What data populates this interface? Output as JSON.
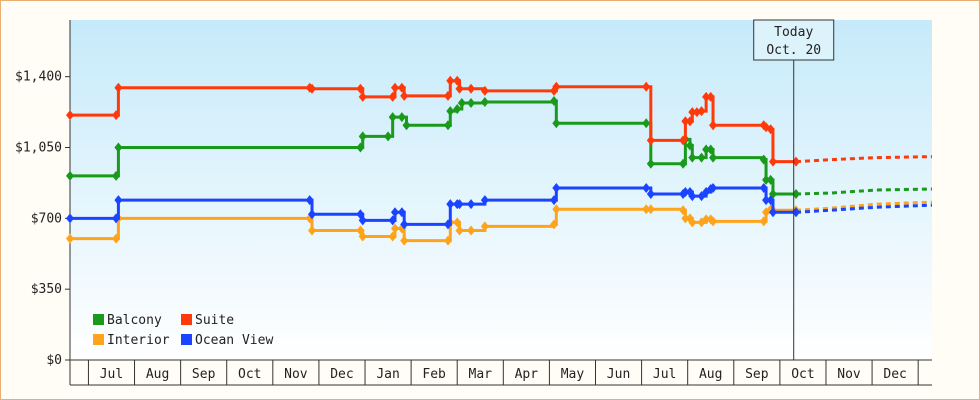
{
  "chart_data": {
    "type": "line",
    "step": true,
    "y_tick_labels": [
      "$0",
      "$350",
      "$700",
      "$1,050",
      "$1,400"
    ],
    "ylim": [
      0,
      1680
    ],
    "x_tick_labels": [
      "Jul",
      "Aug",
      "Sep",
      "Oct",
      "Nov",
      "Dec",
      "Jan",
      "Feb",
      "Mar",
      "Apr",
      "May",
      "Jun",
      "Jul",
      "Aug",
      "Sep",
      "Oct",
      "Nov",
      "Dec"
    ],
    "xlim": [
      0,
      18.7
    ],
    "today": {
      "line1": "Today",
      "line2": "Oct. 20",
      "x": 15.7
    },
    "legend_placement": "bottom-left",
    "series": [
      {
        "name": "Balcony",
        "color": "#1a9a1a",
        "points": [
          [
            0,
            910
          ],
          [
            1,
            910
          ],
          [
            1.05,
            1050
          ],
          [
            6.3,
            1050
          ],
          [
            6.35,
            1105
          ],
          [
            6.9,
            1105
          ],
          [
            7,
            1200
          ],
          [
            7.2,
            1200
          ],
          [
            7.3,
            1160
          ],
          [
            8.2,
            1160
          ],
          [
            8.25,
            1230
          ],
          [
            8.4,
            1240
          ],
          [
            8.5,
            1270
          ],
          [
            8.7,
            1270
          ],
          [
            9,
            1275
          ],
          [
            10.5,
            1280
          ],
          [
            10.55,
            1170
          ],
          [
            12.5,
            1170
          ],
          [
            12.6,
            970
          ],
          [
            13.3,
            970
          ],
          [
            13.35,
            1090
          ],
          [
            13.45,
            1060
          ],
          [
            13.5,
            1000
          ],
          [
            13.7,
            1000
          ],
          [
            13.8,
            1040
          ],
          [
            13.9,
            1040
          ],
          [
            13.95,
            1000
          ],
          [
            15.05,
            990
          ],
          [
            15.1,
            890
          ],
          [
            15.2,
            890
          ],
          [
            15.25,
            820
          ],
          [
            15.75,
            820
          ]
        ],
        "dashed": [
          [
            15.75,
            820
          ],
          [
            16.5,
            825
          ],
          [
            17.5,
            840
          ],
          [
            18.7,
            845
          ]
        ]
      },
      {
        "name": "Suite",
        "color": "#ff3a0a",
        "points": [
          [
            0,
            1210
          ],
          [
            1,
            1210
          ],
          [
            1.05,
            1345
          ],
          [
            5.2,
            1345
          ],
          [
            5.25,
            1340
          ],
          [
            6.3,
            1340
          ],
          [
            6.35,
            1300
          ],
          [
            7,
            1300
          ],
          [
            7.05,
            1345
          ],
          [
            7.2,
            1345
          ],
          [
            7.25,
            1305
          ],
          [
            8.2,
            1305
          ],
          [
            8.25,
            1380
          ],
          [
            8.4,
            1380
          ],
          [
            8.45,
            1340
          ],
          [
            8.7,
            1340
          ],
          [
            9,
            1330
          ],
          [
            10.5,
            1330
          ],
          [
            10.55,
            1350
          ],
          [
            12.5,
            1350
          ],
          [
            12.6,
            1085
          ],
          [
            13.3,
            1085
          ],
          [
            13.35,
            1180
          ],
          [
            13.45,
            1180
          ],
          [
            13.5,
            1225
          ],
          [
            13.6,
            1225
          ],
          [
            13.7,
            1230
          ],
          [
            13.8,
            1300
          ],
          [
            13.9,
            1300
          ],
          [
            13.95,
            1160
          ],
          [
            15.05,
            1160
          ],
          [
            15.1,
            1150
          ],
          [
            15.2,
            1140
          ],
          [
            15.25,
            980
          ],
          [
            15.75,
            980
          ]
        ],
        "dashed": [
          [
            15.75,
            980
          ],
          [
            16.5,
            990
          ],
          [
            17.5,
            1000
          ],
          [
            18.7,
            1005
          ]
        ]
      },
      {
        "name": "Interior",
        "color": "#ffa41a",
        "points": [
          [
            0,
            600
          ],
          [
            1,
            600
          ],
          [
            1.05,
            700
          ],
          [
            5.2,
            700
          ],
          [
            5.25,
            640
          ],
          [
            6.3,
            640
          ],
          [
            6.35,
            610
          ],
          [
            7,
            610
          ],
          [
            7.05,
            650
          ],
          [
            7.2,
            650
          ],
          [
            7.25,
            590
          ],
          [
            8.2,
            590
          ],
          [
            8.25,
            680
          ],
          [
            8.4,
            680
          ],
          [
            8.45,
            640
          ],
          [
            8.7,
            640
          ],
          [
            9,
            660
          ],
          [
            10.5,
            670
          ],
          [
            10.55,
            745
          ],
          [
            12.5,
            745
          ],
          [
            12.6,
            745
          ],
          [
            13.3,
            740
          ],
          [
            13.35,
            700
          ],
          [
            13.45,
            700
          ],
          [
            13.5,
            680
          ],
          [
            13.7,
            680
          ],
          [
            13.8,
            695
          ],
          [
            13.9,
            695
          ],
          [
            13.95,
            685
          ],
          [
            15.05,
            685
          ],
          [
            15.1,
            730
          ],
          [
            15.2,
            745
          ],
          [
            15.25,
            740
          ],
          [
            15.75,
            740
          ]
        ],
        "dashed": [
          [
            15.75,
            740
          ],
          [
            16.5,
            750
          ],
          [
            17.5,
            770
          ],
          [
            18.7,
            780
          ]
        ]
      },
      {
        "name": "Ocean View",
        "color": "#1a44ff",
        "points": [
          [
            0,
            700
          ],
          [
            1,
            700
          ],
          [
            1.05,
            790
          ],
          [
            5.2,
            790
          ],
          [
            5.25,
            720
          ],
          [
            6.3,
            720
          ],
          [
            6.35,
            690
          ],
          [
            7,
            690
          ],
          [
            7.05,
            730
          ],
          [
            7.2,
            730
          ],
          [
            7.25,
            670
          ],
          [
            8.2,
            670
          ],
          [
            8.25,
            770
          ],
          [
            8.4,
            770
          ],
          [
            8.45,
            770
          ],
          [
            8.7,
            770
          ],
          [
            9,
            790
          ],
          [
            10.5,
            790
          ],
          [
            10.55,
            850
          ],
          [
            12.5,
            850
          ],
          [
            12.6,
            820
          ],
          [
            13.3,
            820
          ],
          [
            13.35,
            830
          ],
          [
            13.45,
            830
          ],
          [
            13.5,
            810
          ],
          [
            13.7,
            810
          ],
          [
            13.8,
            830
          ],
          [
            13.9,
            845
          ],
          [
            13.95,
            850
          ],
          [
            15.05,
            850
          ],
          [
            15.1,
            790
          ],
          [
            15.2,
            790
          ],
          [
            15.25,
            730
          ],
          [
            15.75,
            730
          ]
        ],
        "dashed": [
          [
            15.75,
            730
          ],
          [
            16.5,
            740
          ],
          [
            17.5,
            755
          ],
          [
            18.7,
            765
          ]
        ]
      }
    ]
  }
}
